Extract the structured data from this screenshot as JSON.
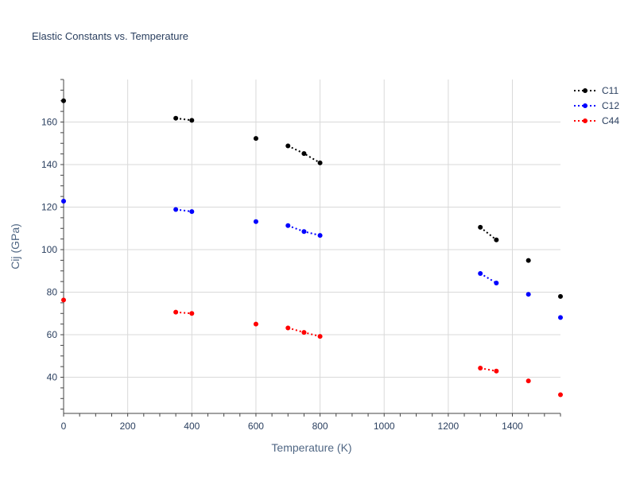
{
  "chart_data": {
    "type": "line",
    "title": "Elastic Constants vs. Temperature",
    "xlabel": "Temperature (K)",
    "ylabel": "Cij (GPa)",
    "xlim": [
      0,
      1550
    ],
    "ylim": [
      23,
      180
    ],
    "x_ticks": [
      0,
      200,
      400,
      600,
      800,
      1000,
      1200,
      1400
    ],
    "y_ticks": [
      40,
      60,
      80,
      100,
      120,
      140,
      160
    ],
    "grid": true,
    "legend_position": "top-right",
    "line_style": "dotted, gaps between non-adjacent measurements",
    "series": [
      {
        "name": "C11",
        "color": "#000000",
        "segments": [
          [
            [
              0,
              170
            ]
          ],
          [
            [
              350,
              161.8
            ],
            [
              400,
              160.8
            ]
          ],
          [
            [
              600,
              152.3
            ]
          ],
          [
            [
              700,
              148.8
            ],
            [
              750,
              145.2
            ],
            [
              800,
              140.8
            ]
          ],
          [
            [
              1300,
              110.5
            ],
            [
              1350,
              104.6
            ]
          ],
          [
            [
              1450,
              94.9
            ]
          ],
          [
            [
              1550,
              78
            ]
          ]
        ]
      },
      {
        "name": "C12",
        "color": "#0000ff",
        "segments": [
          [
            [
              0,
              122.8
            ]
          ],
          [
            [
              350,
              118.9
            ],
            [
              400,
              117.9
            ]
          ],
          [
            [
              600,
              113.2
            ]
          ],
          [
            [
              700,
              111.3
            ],
            [
              750,
              108.5
            ],
            [
              800,
              106.7
            ]
          ],
          [
            [
              1300,
              88.8
            ],
            [
              1350,
              84.3
            ]
          ],
          [
            [
              1450,
              79
            ]
          ],
          [
            [
              1550,
              68.1
            ]
          ]
        ]
      },
      {
        "name": "C44",
        "color": "#ff0000",
        "segments": [
          [
            [
              0,
              76.3
            ]
          ],
          [
            [
              350,
              70.6
            ],
            [
              400,
              70
            ]
          ],
          [
            [
              600,
              65
            ]
          ],
          [
            [
              700,
              63.2
            ],
            [
              750,
              61.1
            ],
            [
              800,
              59.2
            ]
          ],
          [
            [
              1300,
              44.3
            ],
            [
              1350,
              42.9
            ]
          ],
          [
            [
              1450,
              38.3
            ]
          ],
          [
            [
              1550,
              31.8
            ]
          ]
        ]
      }
    ]
  }
}
